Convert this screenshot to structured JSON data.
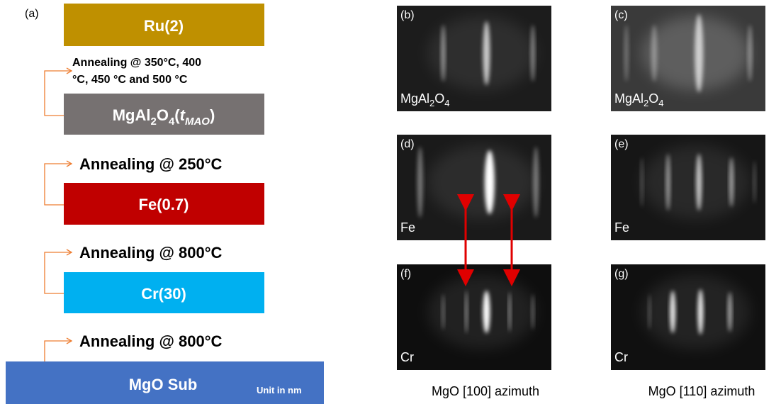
{
  "panel_a": {
    "label": "(a)",
    "layers": {
      "ru": "Ru(2)",
      "mao": [
        "MgAl",
        "2",
        "O",
        "4",
        "(",
        "t",
        "MAO",
        ")"
      ],
      "fe": "Fe(0.7)",
      "cr": "Cr(30)",
      "substrate": "MgO Sub",
      "unit": "Unit in nm"
    },
    "annealing": [
      [
        "Annealing @ 350°C, 400",
        "°C, 450 °C and 500 °C"
      ],
      "Annealing @ 250°C",
      "Annealing @ 800°C",
      "Annealing @ 800°C"
    ]
  },
  "panels": [
    {
      "label": "(b)",
      "material": [
        "MgAl",
        "2",
        "O",
        "4"
      ]
    },
    {
      "label": "(c)",
      "material": [
        "MgAl",
        "2",
        "O",
        "4"
      ]
    },
    {
      "label": "(d)",
      "material": [
        "Fe"
      ]
    },
    {
      "label": "(e)",
      "material": [
        "Fe"
      ]
    },
    {
      "label": "(f)",
      "material": [
        "Cr"
      ]
    },
    {
      "label": "(g)",
      "material": [
        "Cr"
      ]
    }
  ],
  "captions": [
    "MgO [100] azimuth",
    "MgO [110] azimuth"
  ]
}
